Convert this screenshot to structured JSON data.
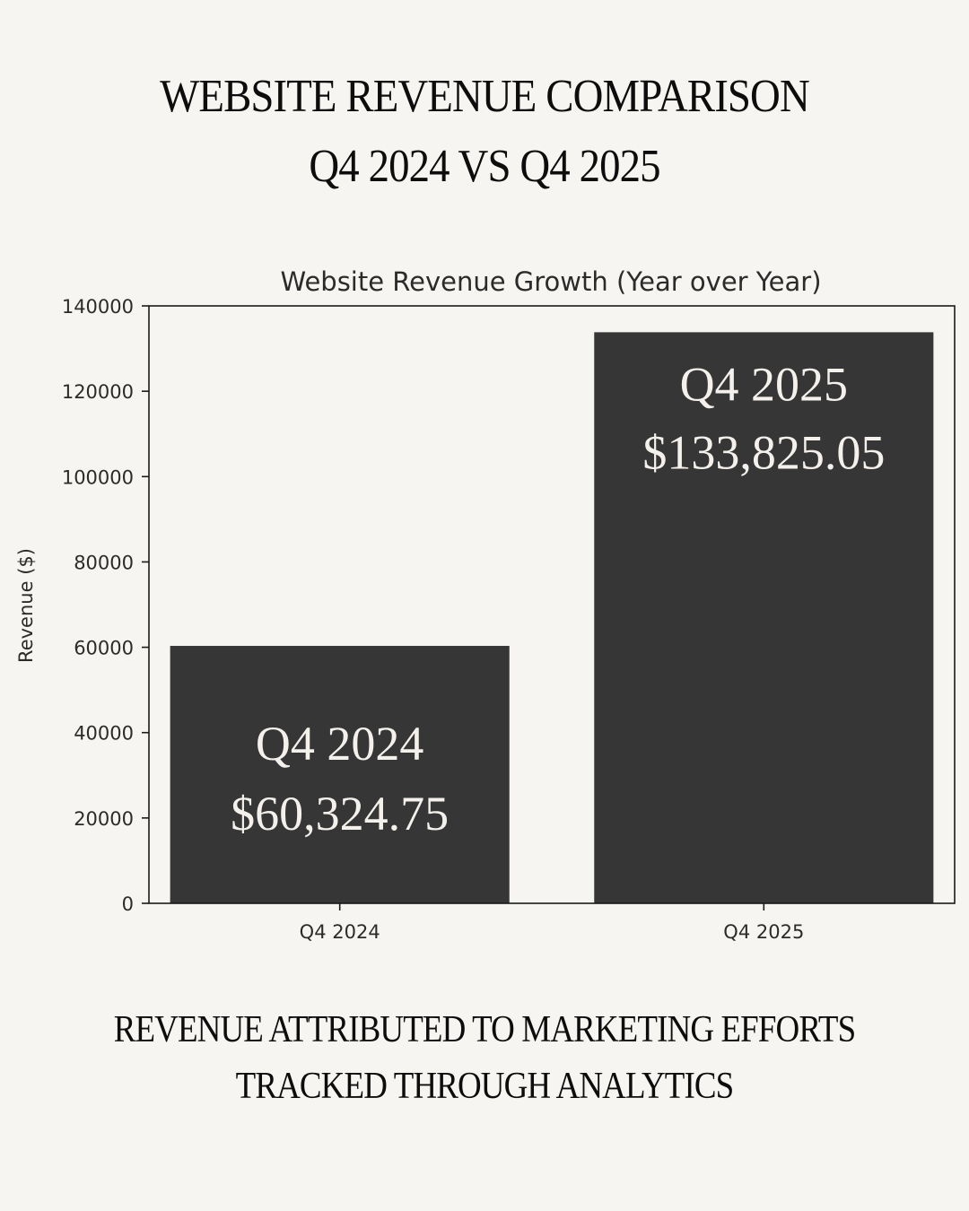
{
  "header": {
    "title_line1": "WEBSITE REVENUE COMPARISON",
    "title_line2": "Q4 2024 VS Q4 2025"
  },
  "footer": {
    "line1": "REVENUE ATTRIBUTED TO MARKETING EFFORTS",
    "line2": "TRACKED THROUGH  ANALYTICS"
  },
  "colors": {
    "background": "#f7f5f1",
    "bar": "#363636",
    "bar_text": "#f4f1ec",
    "axis": "#1a1a1a"
  },
  "chart_data": {
    "type": "bar",
    "title": "Website Revenue Growth (Year over Year)",
    "xlabel": "",
    "ylabel": "Revenue ($)",
    "categories": [
      "Q4 2024",
      "Q4 2025"
    ],
    "values": [
      60324.75,
      133825.05
    ],
    "ylim": [
      0,
      140000
    ],
    "yticks": [
      0,
      20000,
      40000,
      60000,
      80000,
      100000,
      120000,
      140000
    ],
    "ytick_labels": [
      "0",
      "20000",
      "40000",
      "60000",
      "80000",
      "100000",
      "120000",
      "140000"
    ],
    "bar_labels": [
      {
        "line1": "Q4 2024",
        "line2": "$60,324.75"
      },
      {
        "line1": "Q4 2025",
        "line2": "$133,825.05"
      }
    ],
    "grid": false,
    "legend": "none"
  }
}
